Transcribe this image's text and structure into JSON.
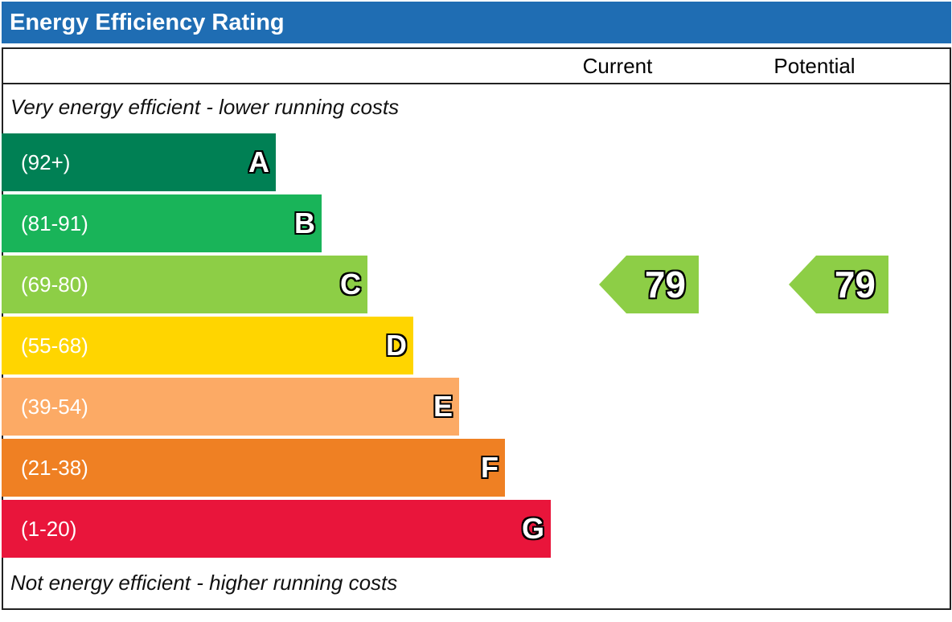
{
  "title": "Energy Efficiency Rating",
  "columns": {
    "current": "Current",
    "potential": "Potential"
  },
  "captions": {
    "top": "Very energy efficient - lower running costs",
    "bottom": "Not energy efficient - higher running costs"
  },
  "chart_data": {
    "type": "bar",
    "title": "Energy Efficiency Rating",
    "categories": [
      "A",
      "B",
      "C",
      "D",
      "E",
      "F",
      "G"
    ],
    "bands": [
      {
        "letter": "A",
        "range": "(92+)",
        "color": "#008054"
      },
      {
        "letter": "B",
        "range": "(81-91)",
        "color": "#19b459"
      },
      {
        "letter": "C",
        "range": "(69-80)",
        "color": "#8dce46"
      },
      {
        "letter": "D",
        "range": "(55-68)",
        "color": "#ffd500"
      },
      {
        "letter": "E",
        "range": "(39-54)",
        "color": "#fcaa65"
      },
      {
        "letter": "F",
        "range": "(21-38)",
        "color": "#ef8023"
      },
      {
        "letter": "G",
        "range": "(1-20)",
        "color": "#e9153b"
      }
    ],
    "current": {
      "value": 79,
      "band": "C",
      "color": "#8dce46"
    },
    "potential": {
      "value": 79,
      "band": "C",
      "color": "#8dce46"
    }
  }
}
